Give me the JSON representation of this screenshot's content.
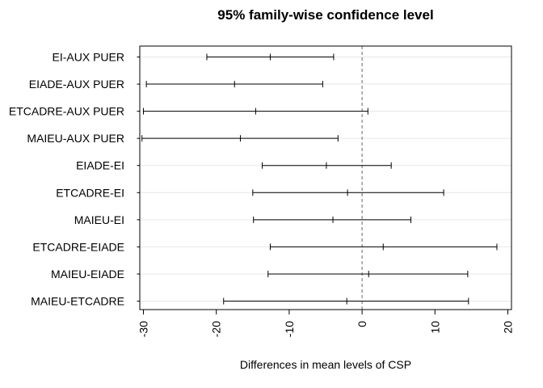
{
  "chart_data": {
    "type": "interval",
    "title": "95% family-wise confidence level",
    "xlabel": "Differences in mean levels of CSP",
    "ylabel": "",
    "xlim": [
      -30.5,
      20.5
    ],
    "xticks": [
      -30,
      -20,
      -10,
      0,
      10,
      20
    ],
    "xtick_labels": [
      "-30",
      "-20",
      "-10",
      "0",
      "10",
      "20"
    ],
    "reference_line": 0,
    "grid": true,
    "comparisons": [
      {
        "label": "EI-AUX PUER",
        "lwr": -21.3,
        "diff": -12.6,
        "upr": -3.9
      },
      {
        "label": "EIADE-AUX PUER",
        "lwr": -29.6,
        "diff": -17.5,
        "upr": -5.4
      },
      {
        "label": "ETCADRE-AUX PUER",
        "lwr": -30.0,
        "diff": -14.6,
        "upr": 0.8
      },
      {
        "label": "MAIEU-AUX PUER",
        "lwr": -30.2,
        "diff": -16.7,
        "upr": -3.3
      },
      {
        "label": "EIADE-EI",
        "lwr": -13.7,
        "diff": -4.9,
        "upr": 4.0
      },
      {
        "label": "ETCADRE-EI",
        "lwr": -15.0,
        "diff": -2.0,
        "upr": 11.2
      },
      {
        "label": "MAIEU-EI",
        "lwr": -14.9,
        "diff": -4.0,
        "upr": 6.7
      },
      {
        "label": "ETCADRE-EIADE",
        "lwr": -12.6,
        "diff": 2.9,
        "upr": 18.5
      },
      {
        "label": "MAIEU-EIADE",
        "lwr": -12.9,
        "diff": 0.9,
        "upr": 14.5
      },
      {
        "label": "MAIEU-ETCADRE",
        "lwr": -19.0,
        "diff": -2.1,
        "upr": 14.6
      }
    ]
  }
}
